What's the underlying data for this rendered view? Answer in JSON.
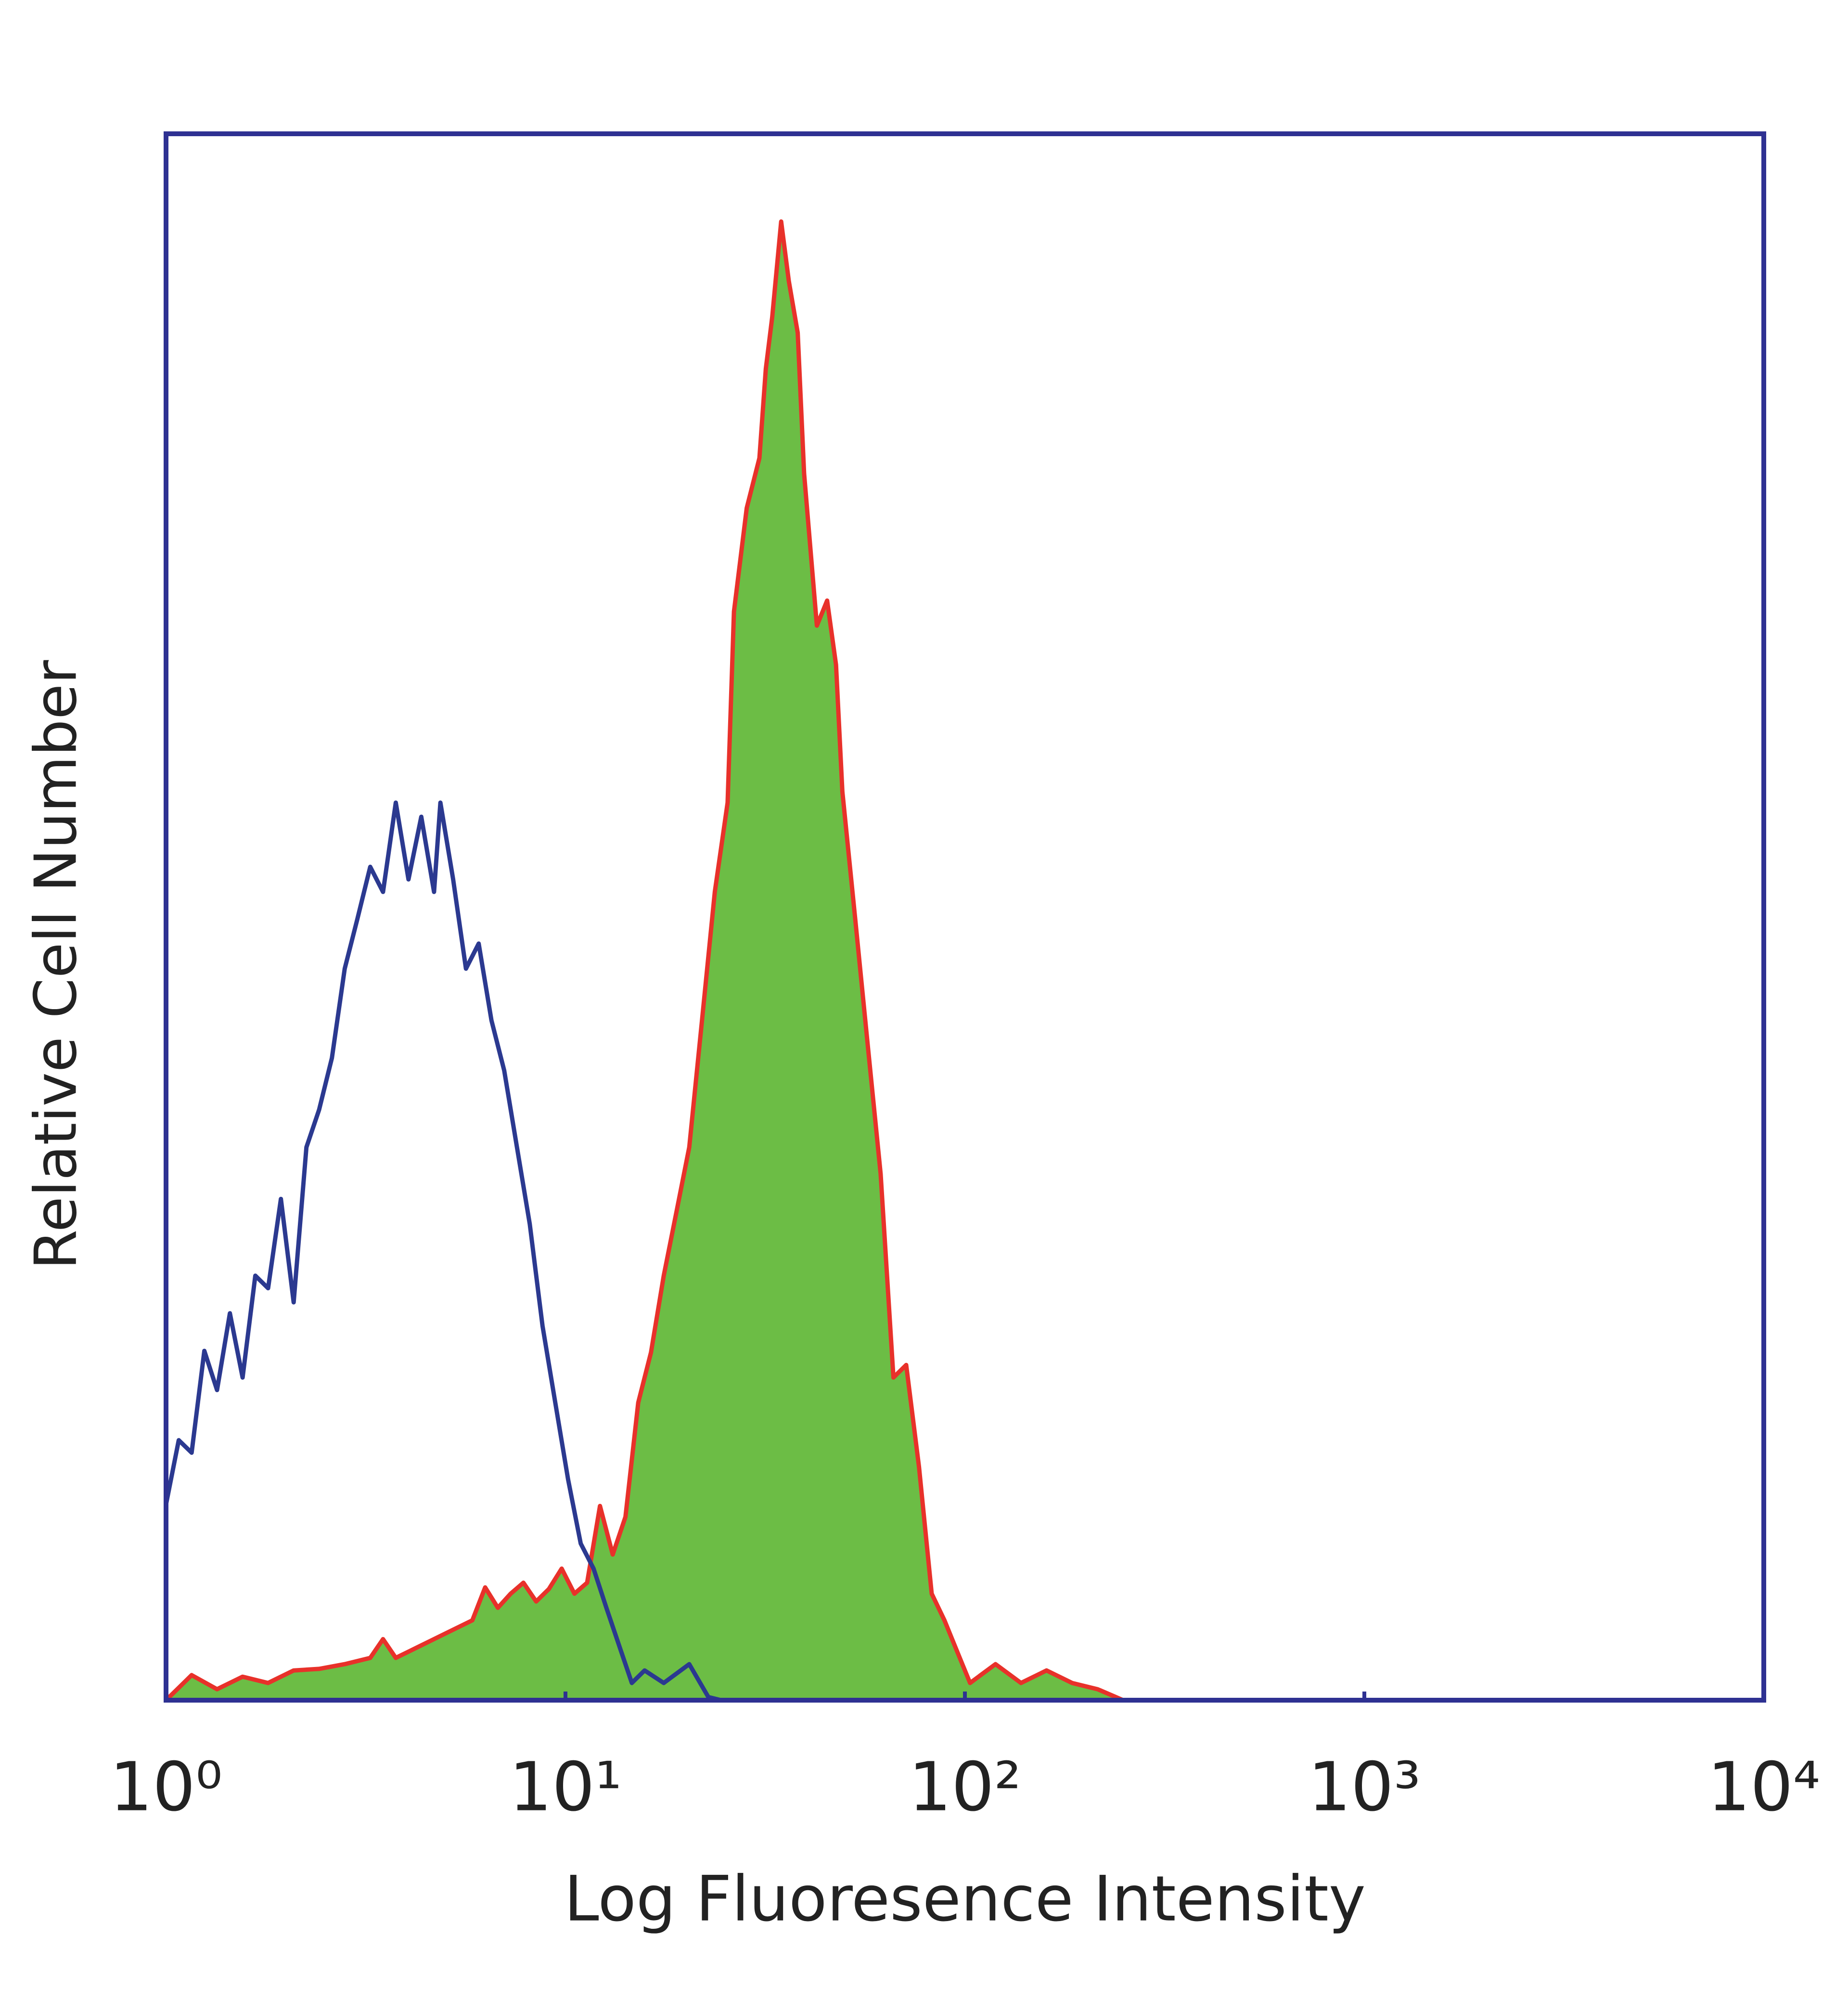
{
  "chart_data": {
    "type": "line",
    "xlabel": "Log Fluoresence Intensity",
    "ylabel": "Relative Cell Number",
    "xscale": "log",
    "xlim": [
      1,
      10000
    ],
    "xticks": [
      {
        "value": 1,
        "label": "10⁰"
      },
      {
        "value": 10,
        "label": "10¹"
      },
      {
        "value": 100,
        "label": "10²"
      },
      {
        "value": 1000,
        "label": "10³"
      },
      {
        "value": 10000,
        "label": "10⁴"
      }
    ],
    "ylim": [
      0,
      100
    ],
    "frame_color": "#2e3192",
    "series": [
      {
        "color": "#2b3990",
        "x": [
          1,
          1.076,
          1.159,
          1.247,
          1.342,
          1.445,
          1.555,
          1.673,
          1.801,
          1.939,
          2.087,
          2.246,
          2.417,
          2.602,
          2.801,
          3.015,
          3.245,
          3.493,
          3.76,
          4.046,
          4.355,
          4.688,
          4.863,
          5.234,
          5.634,
          6.064,
          6.527,
          7.025,
          7.561,
          8.139,
          8.76,
          9.428,
          10.15,
          10.92,
          11.76,
          12.66,
          13.62,
          14.66,
          15.78,
          17.62,
          20.41,
          22.79,
          24.53
        ],
        "values": [
          12.5,
          16.6,
          15.8,
          22.3,
          19.8,
          24.7,
          20.6,
          27.1,
          26.3,
          32.0,
          25.4,
          35.3,
          37.7,
          41.0,
          46.7,
          49.9,
          53.2,
          51.6,
          57.3,
          52.4,
          56.4,
          51.6,
          57.3,
          52.4,
          46.7,
          48.3,
          43.4,
          40.2,
          35.3,
          30.4,
          23.9,
          19.0,
          14.1,
          10.0,
          8.4,
          5.9,
          3.5,
          1.1,
          1.9,
          1.1,
          2.3,
          0.2,
          0
        ]
      },
      {
        "color": "#e8312a",
        "fill": "#6cbd45",
        "x": [
          1,
          1.159,
          1.342,
          1.555,
          1.801,
          2.087,
          2.417,
          2.801,
          3.245,
          3.493,
          3.76,
          4.355,
          5.046,
          5.846,
          6.293,
          6.773,
          7.29,
          7.847,
          8.446,
          9.09,
          9.782,
          10.53,
          11.33,
          12.2,
          13.13,
          14.13,
          15.21,
          16.37,
          17.62,
          18.97,
          20.41,
          21.97,
          23.65,
          25.46,
          26.41,
          28.43,
          30.59,
          31.74,
          32.93,
          34.67,
          36.24,
          38.15,
          39.58,
          42.6,
          45.19,
          47.57,
          49.35,
          53.12,
          57.18,
          61.53,
          66.23,
          71.28,
          76.74,
          82.59,
          88.89,
          95.67,
          103.0,
          119.3,
          138.2,
          160.1,
          185.5,
          214.9,
          249.0
        ],
        "values": [
          0,
          1.6,
          0.7,
          1.5,
          1.1,
          1.9,
          2.0,
          2.3,
          2.7,
          3.9,
          2.7,
          3.5,
          4.3,
          5.1,
          7.2,
          5.9,
          6.8,
          7.5,
          6.3,
          7.1,
          8.4,
          6.8,
          7.5,
          12.4,
          9.3,
          11.7,
          19.0,
          22.2,
          27.1,
          31.2,
          35.3,
          43.4,
          51.6,
          57.3,
          69.5,
          76.1,
          79.3,
          85.0,
          88.3,
          94.4,
          90.6,
          87.3,
          78.3,
          68.6,
          70.2,
          66.1,
          58.0,
          49.9,
          41.7,
          33.6,
          20.6,
          21.4,
          14.9,
          6.8,
          5.1,
          3.1,
          1.1,
          2.3,
          1.1,
          1.9,
          1.1,
          0.7,
          0
        ]
      }
    ]
  }
}
